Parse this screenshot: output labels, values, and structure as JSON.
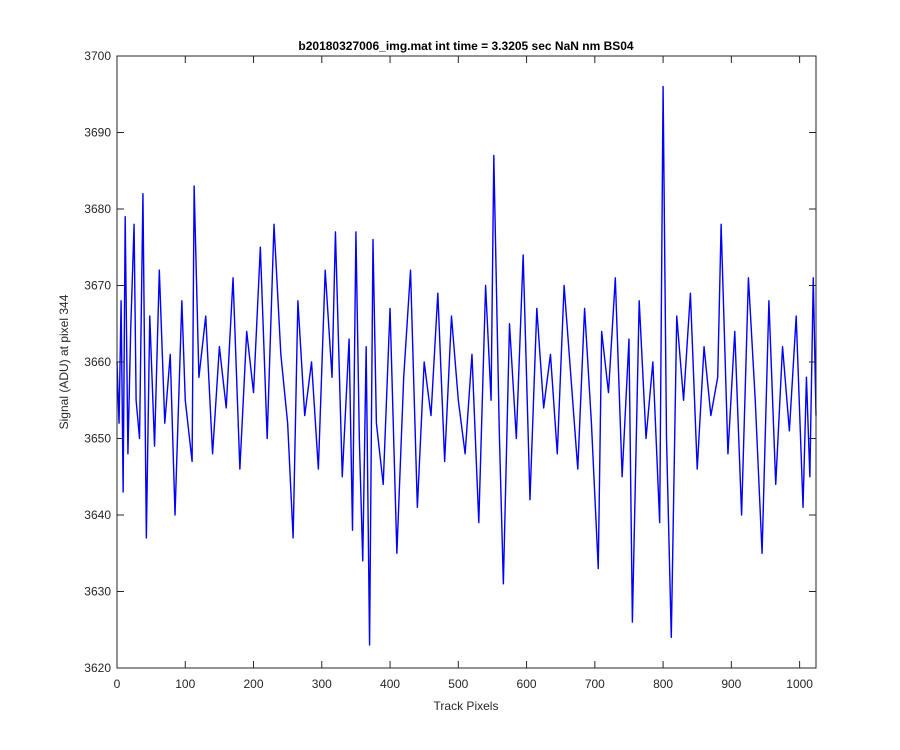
{
  "figure": {
    "background": "#ffffff",
    "axes_color": "#262626"
  },
  "chart_data": {
    "type": "line",
    "title": "b20180327006_img.mat int time = 3.3205 sec  NaN nm BS04",
    "xlabel": "Track Pixels",
    "ylabel": "Signal (ADU) at pixel 344",
    "xlim": [
      0,
      1024
    ],
    "ylim": [
      3620,
      3700
    ],
    "xticks": [
      0,
      100,
      200,
      300,
      400,
      500,
      600,
      700,
      800,
      900,
      1000
    ],
    "xtick_labels": [
      "0",
      "100",
      "200",
      "300",
      "400",
      "500",
      "600",
      "700",
      "800",
      "900",
      "1000"
    ],
    "yticks": [
      3620,
      3630,
      3640,
      3650,
      3660,
      3670,
      3680,
      3690,
      3700
    ],
    "ytick_labels": [
      "3620",
      "3630",
      "3640",
      "3650",
      "3660",
      "3670",
      "3680",
      "3690",
      "3700"
    ],
    "grid": false,
    "box": true,
    "series": [
      {
        "color": "#0000ff",
        "x": [
          0,
          3,
          6,
          9,
          12,
          16,
          20,
          25,
          28,
          33,
          38,
          43,
          48,
          55,
          62,
          70,
          78,
          85,
          95,
          100,
          110,
          113,
          120,
          130,
          140,
          150,
          160,
          170,
          180,
          190,
          200,
          210,
          220,
          230,
          240,
          250,
          258,
          265,
          275,
          285,
          295,
          305,
          315,
          320,
          330,
          340,
          345,
          350,
          355,
          360,
          365,
          370,
          375,
          380,
          390,
          400,
          410,
          420,
          430,
          440,
          450,
          460,
          470,
          480,
          490,
          500,
          510,
          520,
          530,
          540,
          548,
          552,
          560,
          566,
          575,
          585,
          595,
          605,
          615,
          625,
          635,
          645,
          655,
          665,
          675,
          685,
          695,
          705,
          710,
          720,
          730,
          740,
          750,
          755,
          765,
          775,
          785,
          795,
          800,
          805,
          812,
          820,
          830,
          840,
          850,
          860,
          870,
          880,
          885,
          895,
          905,
          915,
          925,
          935,
          945,
          955,
          965,
          975,
          985,
          995,
          1005,
          1010,
          1015,
          1020,
          1024
        ],
        "y": [
          3660,
          3652,
          3668,
          3643,
          3679,
          3648,
          3664,
          3678,
          3655,
          3650,
          3682,
          3637,
          3666,
          3649,
          3672,
          3652,
          3661,
          3640,
          3668,
          3655,
          3647,
          3683,
          3658,
          3666,
          3648,
          3662,
          3654,
          3671,
          3646,
          3664,
          3656,
          3675,
          3650,
          3678,
          3661,
          3652,
          3637,
          3668,
          3653,
          3660,
          3646,
          3672,
          3658,
          3677,
          3645,
          3663,
          3638,
          3677,
          3650,
          3634,
          3662,
          3623,
          3676,
          3652,
          3644,
          3667,
          3635,
          3658,
          3672,
          3641,
          3660,
          3653,
          3669,
          3647,
          3666,
          3655,
          3648,
          3661,
          3639,
          3670,
          3655,
          3687,
          3651,
          3631,
          3665,
          3650,
          3674,
          3642,
          3667,
          3654,
          3661,
          3648,
          3670,
          3658,
          3646,
          3667,
          3652,
          3633,
          3664,
          3656,
          3671,
          3645,
          3663,
          3626,
          3668,
          3650,
          3660,
          3639,
          3696,
          3650,
          3624,
          3666,
          3655,
          3669,
          3646,
          3662,
          3653,
          3658,
          3678,
          3648,
          3664,
          3640,
          3671,
          3655,
          3635,
          3668,
          3644,
          3662,
          3651,
          3666,
          3641,
          3658,
          3645,
          3671,
          3653
        ]
      }
    ]
  }
}
